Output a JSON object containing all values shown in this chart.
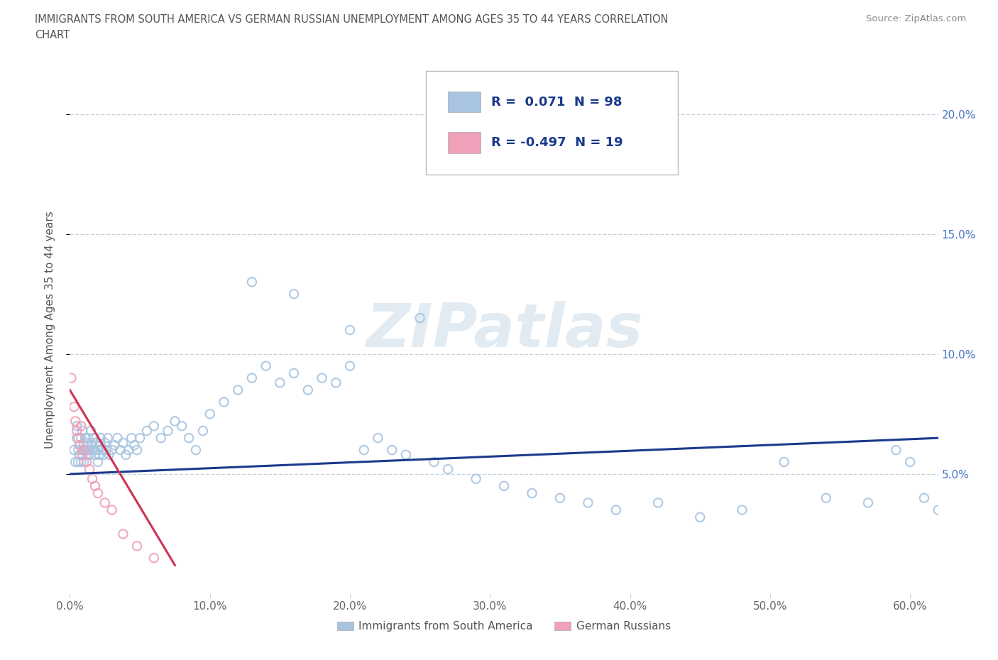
{
  "title_line1": "IMMIGRANTS FROM SOUTH AMERICA VS GERMAN RUSSIAN UNEMPLOYMENT AMONG AGES 35 TO 44 YEARS CORRELATION",
  "title_line2": "CHART",
  "source": "Source: ZipAtlas.com",
  "ylabel": "Unemployment Among Ages 35 to 44 years",
  "legend_blue_label": "Immigrants from South America",
  "legend_pink_label": "German Russians",
  "R_blue": 0.071,
  "N_blue": 98,
  "R_pink": -0.497,
  "N_pink": 19,
  "xlim": [
    0.0,
    0.62
  ],
  "ylim": [
    0.0,
    0.22
  ],
  "yticks": [
    0.05,
    0.1,
    0.15,
    0.2
  ],
  "xticks": [
    0.0,
    0.1,
    0.2,
    0.3,
    0.4,
    0.5,
    0.6
  ],
  "blue_color": "#a8c4e0",
  "pink_color": "#f0a0b8",
  "blue_line_color": "#1a3a8c",
  "pink_line_color": "#cc3355",
  "watermark_color": "#ccdce8",
  "grid_color": "#c8d4dc",
  "background_color": "#ffffff",
  "blue_x": [
    0.003,
    0.004,
    0.005,
    0.005,
    0.006,
    0.006,
    0.007,
    0.007,
    0.008,
    0.008,
    0.009,
    0.009,
    0.01,
    0.01,
    0.011,
    0.011,
    0.012,
    0.012,
    0.013,
    0.013,
    0.014,
    0.014,
    0.015,
    0.015,
    0.016,
    0.016,
    0.017,
    0.018,
    0.018,
    0.019,
    0.02,
    0.02,
    0.021,
    0.022,
    0.022,
    0.023,
    0.024,
    0.025,
    0.026,
    0.027,
    0.028,
    0.03,
    0.032,
    0.034,
    0.036,
    0.038,
    0.04,
    0.042,
    0.044,
    0.046,
    0.048,
    0.05,
    0.055,
    0.06,
    0.065,
    0.07,
    0.075,
    0.08,
    0.085,
    0.09,
    0.095,
    0.1,
    0.11,
    0.12,
    0.13,
    0.14,
    0.15,
    0.16,
    0.17,
    0.18,
    0.19,
    0.2,
    0.21,
    0.22,
    0.23,
    0.24,
    0.26,
    0.27,
    0.29,
    0.31,
    0.33,
    0.35,
    0.37,
    0.39,
    0.42,
    0.45,
    0.48,
    0.51,
    0.54,
    0.57,
    0.59,
    0.6,
    0.61,
    0.62,
    0.13,
    0.16,
    0.2,
    0.25
  ],
  "blue_y": [
    0.06,
    0.055,
    0.065,
    0.07,
    0.055,
    0.06,
    0.058,
    0.062,
    0.055,
    0.065,
    0.06,
    0.068,
    0.055,
    0.062,
    0.06,
    0.065,
    0.058,
    0.063,
    0.06,
    0.065,
    0.058,
    0.06,
    0.063,
    0.068,
    0.06,
    0.062,
    0.065,
    0.058,
    0.06,
    0.063,
    0.055,
    0.06,
    0.058,
    0.062,
    0.065,
    0.06,
    0.058,
    0.063,
    0.06,
    0.065,
    0.058,
    0.06,
    0.062,
    0.065,
    0.06,
    0.063,
    0.058,
    0.06,
    0.065,
    0.062,
    0.06,
    0.065,
    0.068,
    0.07,
    0.065,
    0.068,
    0.072,
    0.07,
    0.065,
    0.06,
    0.068,
    0.075,
    0.08,
    0.085,
    0.09,
    0.095,
    0.088,
    0.092,
    0.085,
    0.09,
    0.088,
    0.095,
    0.06,
    0.065,
    0.06,
    0.058,
    0.055,
    0.052,
    0.048,
    0.045,
    0.042,
    0.04,
    0.038,
    0.035,
    0.038,
    0.032,
    0.035,
    0.055,
    0.04,
    0.038,
    0.06,
    0.055,
    0.04,
    0.035,
    0.13,
    0.125,
    0.11,
    0.115
  ],
  "pink_x": [
    0.001,
    0.003,
    0.004,
    0.005,
    0.006,
    0.007,
    0.008,
    0.009,
    0.01,
    0.012,
    0.014,
    0.016,
    0.018,
    0.02,
    0.025,
    0.03,
    0.038,
    0.048,
    0.06
  ],
  "pink_y": [
    0.09,
    0.078,
    0.072,
    0.068,
    0.065,
    0.062,
    0.07,
    0.058,
    0.06,
    0.055,
    0.052,
    0.048,
    0.045,
    0.042,
    0.038,
    0.035,
    0.025,
    0.02,
    0.015
  ]
}
